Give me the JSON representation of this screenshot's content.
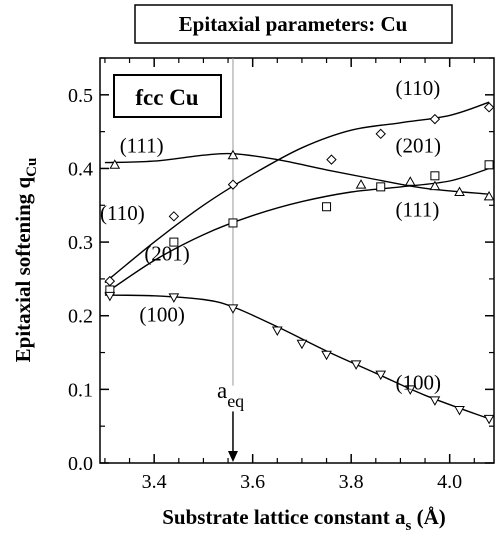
{
  "chart_data": {
    "type": "scatter",
    "title": "Epitaxial parameters: Cu",
    "inset_label": "fcc Cu",
    "xlabel": "Substrate lattice constant a",
    "xlabel_sub": "s",
    "xlabel_unit": " (Å)",
    "ylabel": "Epitaxial softening q",
    "ylabel_sub": "Cu",
    "xlim": [
      3.29,
      4.09
    ],
    "ylim": [
      0.0,
      0.55
    ],
    "x_ticks": [
      "3.4",
      "3.6",
      "3.8",
      "4.0"
    ],
    "x_tick_values": [
      3.4,
      3.6,
      3.8,
      4.0
    ],
    "y_ticks": [
      "0.0",
      "0.1",
      "0.2",
      "0.3",
      "0.4",
      "0.5"
    ],
    "y_tick_values": [
      0.0,
      0.1,
      0.2,
      0.3,
      0.4,
      0.5
    ],
    "eq_marker": {
      "x": 3.56,
      "label": "a",
      "label_sub": "eq",
      "arrow_from": 0.07,
      "arrow_to": 0.0
    },
    "series": [
      {
        "name": "(111)",
        "marker": "triangle-up",
        "points": [
          [
            3.32,
            0.405
          ],
          [
            3.56,
            0.418
          ],
          [
            3.82,
            0.378
          ],
          [
            3.92,
            0.382
          ],
          [
            3.97,
            0.376
          ],
          [
            4.02,
            0.368
          ],
          [
            4.08,
            0.362
          ]
        ],
        "curve": [
          [
            3.3,
            0.408
          ],
          [
            3.4,
            0.41
          ],
          [
            3.5,
            0.418
          ],
          [
            3.56,
            0.42
          ],
          [
            3.65,
            0.412
          ],
          [
            3.75,
            0.398
          ],
          [
            3.85,
            0.385
          ],
          [
            3.95,
            0.373
          ],
          [
            4.08,
            0.365
          ]
        ]
      },
      {
        "name": "(110)",
        "marker": "diamond",
        "points": [
          [
            3.31,
            0.247
          ],
          [
            3.44,
            0.335
          ],
          [
            3.56,
            0.378
          ],
          [
            3.76,
            0.412
          ],
          [
            3.86,
            0.447
          ],
          [
            3.97,
            0.467
          ],
          [
            4.08,
            0.483
          ]
        ],
        "curve": [
          [
            3.3,
            0.245
          ],
          [
            3.4,
            0.3
          ],
          [
            3.5,
            0.35
          ],
          [
            3.6,
            0.392
          ],
          [
            3.7,
            0.428
          ],
          [
            3.8,
            0.452
          ],
          [
            3.9,
            0.462
          ],
          [
            4.0,
            0.472
          ],
          [
            4.08,
            0.49
          ]
        ]
      },
      {
        "name": "(201)",
        "marker": "square",
        "points": [
          [
            3.31,
            0.235
          ],
          [
            3.44,
            0.3
          ],
          [
            3.56,
            0.326
          ],
          [
            3.75,
            0.348
          ],
          [
            3.86,
            0.375
          ],
          [
            3.97,
            0.39
          ],
          [
            4.08,
            0.405
          ]
        ],
        "curve": [
          [
            3.3,
            0.23
          ],
          [
            3.4,
            0.275
          ],
          [
            3.5,
            0.31
          ],
          [
            3.6,
            0.336
          ],
          [
            3.7,
            0.355
          ],
          [
            3.8,
            0.368
          ],
          [
            3.9,
            0.375
          ],
          [
            4.0,
            0.383
          ],
          [
            4.08,
            0.4
          ]
        ]
      },
      {
        "name": "(100)",
        "marker": "triangle-down",
        "points": [
          [
            3.31,
            0.227
          ],
          [
            3.44,
            0.225
          ],
          [
            3.56,
            0.21
          ],
          [
            3.65,
            0.18
          ],
          [
            3.7,
            0.162
          ],
          [
            3.75,
            0.147
          ],
          [
            3.81,
            0.134
          ],
          [
            3.86,
            0.12
          ],
          [
            3.92,
            0.1
          ],
          [
            3.97,
            0.085
          ],
          [
            4.02,
            0.072
          ],
          [
            4.08,
            0.06
          ]
        ],
        "curve": [
          [
            3.3,
            0.228
          ],
          [
            3.4,
            0.227
          ],
          [
            3.5,
            0.222
          ],
          [
            3.56,
            0.212
          ],
          [
            3.65,
            0.185
          ],
          [
            3.75,
            0.152
          ],
          [
            3.85,
            0.122
          ],
          [
            3.95,
            0.092
          ],
          [
            4.08,
            0.06
          ]
        ]
      }
    ],
    "series_labels": [
      {
        "text": "(111)",
        "x": 3.33,
        "y": 0.422,
        "anchor": "start"
      },
      {
        "text": "(110)",
        "x": 3.29,
        "y": 0.33,
        "anchor": "start"
      },
      {
        "text": "(201)",
        "x": 3.38,
        "y": 0.275,
        "anchor": "start"
      },
      {
        "text": "(100)",
        "x": 3.37,
        "y": 0.192,
        "anchor": "start"
      },
      {
        "text": "(110)",
        "x": 3.89,
        "y": 0.5,
        "anchor": "start"
      },
      {
        "text": "(201)",
        "x": 3.89,
        "y": 0.422,
        "anchor": "start"
      },
      {
        "text": "(111)",
        "x": 3.89,
        "y": 0.335,
        "anchor": "start"
      },
      {
        "text": "(100)",
        "x": 3.89,
        "y": 0.1,
        "anchor": "start"
      }
    ]
  }
}
